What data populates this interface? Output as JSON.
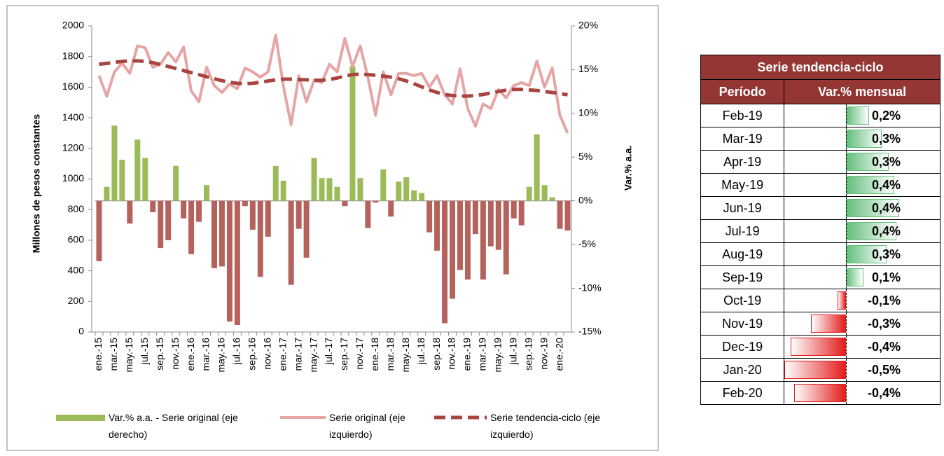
{
  "chart_data": {
    "type": "combo",
    "y_label": "Millones de pesos constantes",
    "y2_label": "Var.% a.a.",
    "categories": [
      "ene.-15",
      null,
      "mar.-15",
      null,
      "may.-15",
      null,
      "jul.-15",
      null,
      "sep.-15",
      null,
      "nov.-15",
      null,
      "ene.-16",
      null,
      "mar.-16",
      null,
      "may.-16",
      null,
      "jul.-16",
      null,
      "sep.-16",
      null,
      "nov.-16",
      null,
      "ene.-17",
      null,
      "mar.-17",
      null,
      "may.-17",
      null,
      "jul.-17",
      null,
      "sep.-17",
      null,
      "nov.-17",
      null,
      "ene.-18",
      null,
      "mar.-18",
      null,
      "may.-18",
      null,
      "jul.-18",
      null,
      "sep.-18",
      null,
      "nov.-18",
      null,
      "ene.-19",
      null,
      "mar.-19",
      null,
      "may.-19",
      null,
      "jul.-19",
      null,
      "sep.-19",
      null,
      "nov.-19",
      null,
      "ene.-20",
      null
    ],
    "ylim": [
      0,
      2000
    ],
    "yticks": [
      0,
      200,
      400,
      600,
      800,
      1000,
      1200,
      1400,
      1600,
      1800,
      2000
    ],
    "y2lim": [
      -15,
      20
    ],
    "y2ticks": [
      {
        "value": -15,
        "label": "-15%"
      },
      {
        "value": -10,
        "label": "-10%"
      },
      {
        "value": -5,
        "label": "-5%"
      },
      {
        "value": 0,
        "label": "0%"
      },
      {
        "value": 5,
        "label": "5%"
      },
      {
        "value": 10,
        "label": "10%"
      },
      {
        "value": 15,
        "label": "15%"
      },
      {
        "value": 20,
        "label": "20%"
      }
    ],
    "series": [
      {
        "name": "Var.% a.a. - Serie original (eje derecho)",
        "type": "bar",
        "axis": "y2",
        "color": "#9bbb59",
        "negative_color": "#b5625d",
        "values": [
          -6.9,
          1.6,
          8.6,
          4.7,
          -2.6,
          7.0,
          4.9,
          -1.3,
          -5.4,
          -4.5,
          4.0,
          -2.0,
          -6.1,
          -2.4,
          1.8,
          -7.7,
          -7.5,
          -13.8,
          -14.2,
          -0.6,
          -3.3,
          -8.7,
          -4.1,
          4.0,
          2.3,
          -9.6,
          -3.2,
          -6.5,
          4.9,
          2.6,
          2.6,
          1.6,
          -0.6,
          15.4,
          2.6,
          -3.1,
          -0.2,
          3.6,
          -1.8,
          2.2,
          2.7,
          1.2,
          0.9,
          -3.6,
          -5.7,
          -14.0,
          -11.2,
          -7.9,
          -9.0,
          -3.8,
          -9.0,
          -5.2,
          -5.6,
          -8.4,
          -2.0,
          -2.8,
          1.6,
          7.6,
          1.8,
          0.4,
          -3.2,
          -3.4
        ]
      },
      {
        "name": "Serie original (eje izquierdo)",
        "type": "line",
        "color": "#e6a5a5",
        "values": [
          1675,
          1540,
          1700,
          1757,
          1690,
          1870,
          1858,
          1730,
          1750,
          1826,
          1765,
          1862,
          1575,
          1505,
          1730,
          1610,
          1565,
          1620,
          1590,
          1725,
          1700,
          1665,
          1700,
          1940,
          1605,
          1355,
          1675,
          1505,
          1645,
          1630,
          1750,
          1700,
          1918,
          1735,
          1870,
          1665,
          1415,
          1700,
          1550,
          1690,
          1690,
          1675,
          1690,
          1600,
          1675,
          1550,
          1490,
          1720,
          1460,
          1345,
          1490,
          1460,
          1585,
          1530,
          1610,
          1630,
          1610,
          1770,
          1600,
          1725,
          1415,
          1300
        ]
      },
      {
        "name": "Serie tendencia-ciclo (eje izquierdo)",
        "type": "dashed",
        "color": "#a94440",
        "values": [
          1750,
          1755,
          1762,
          1768,
          1772,
          1772,
          1768,
          1760,
          1748,
          1735,
          1722,
          1708,
          1695,
          1682,
          1668,
          1655,
          1642,
          1632,
          1625,
          1622,
          1625,
          1632,
          1640,
          1648,
          1652,
          1652,
          1650,
          1648,
          1645,
          1645,
          1650,
          1660,
          1672,
          1682,
          1685,
          1682,
          1678,
          1672,
          1665,
          1655,
          1640,
          1622,
          1602,
          1582,
          1565,
          1552,
          1545,
          1542,
          1542,
          1545,
          1552,
          1562,
          1572,
          1580,
          1585,
          1585,
          1582,
          1578,
          1572,
          1565,
          1558,
          1550
        ]
      }
    ]
  },
  "table": {
    "title": "Serie tendencia-ciclo",
    "headers": [
      "Período",
      "Var.% mensual"
    ],
    "rows": [
      {
        "period": "Feb-19",
        "value": 0.18,
        "value_label": "0,2%"
      },
      {
        "period": "Mar-19",
        "value": 0.28,
        "value_label": "0,3%"
      },
      {
        "period": "Apr-19",
        "value": 0.34,
        "value_label": "0,3%"
      },
      {
        "period": "May-19",
        "value": 0.38,
        "value_label": "0,4%"
      },
      {
        "period": "Jun-19",
        "value": 0.42,
        "value_label": "0,4%"
      },
      {
        "period": "Jul-19",
        "value": 0.4,
        "value_label": "0,4%"
      },
      {
        "period": "Aug-19",
        "value": 0.32,
        "value_label": "0,3%"
      },
      {
        "period": "Sep-19",
        "value": 0.14,
        "value_label": "0,1%"
      },
      {
        "period": "Oct-19",
        "value": -0.07,
        "value_label": "-0,1%"
      },
      {
        "period": "Nov-19",
        "value": -0.28,
        "value_label": "-0,3%"
      },
      {
        "period": "Dec-19",
        "value": -0.44,
        "value_label": "-0,4%"
      },
      {
        "period": "Jan-20",
        "value": -0.49,
        "value_label": "-0,5%"
      },
      {
        "period": "Feb-20",
        "value": -0.41,
        "value_label": "-0,4%"
      }
    ]
  }
}
